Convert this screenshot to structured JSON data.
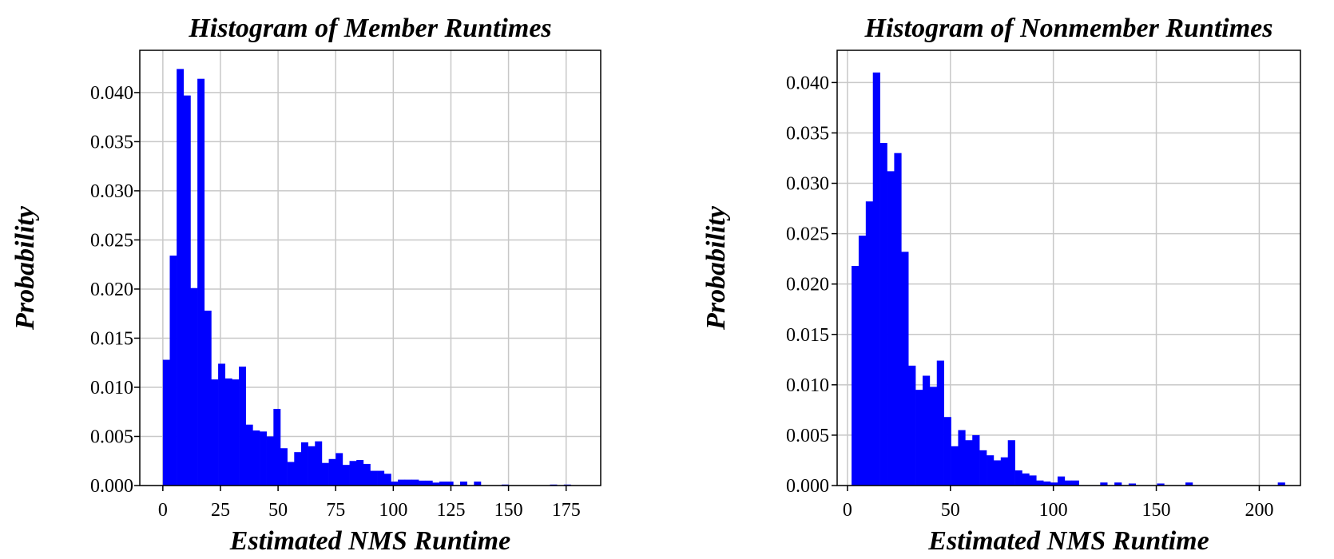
{
  "chart_data": [
    {
      "type": "bar",
      "title": "Histogram of Member Runtimes",
      "xlabel": "Estimated NMS Runtime",
      "ylabel": "Probability",
      "xlim": [
        -10,
        190
      ],
      "ylim": [
        0,
        0.0443
      ],
      "xticks": [
        0,
        25,
        50,
        75,
        100,
        125,
        150,
        175
      ],
      "xtick_labels": [
        "0",
        "25",
        "50",
        "75",
        "100",
        "125",
        "150",
        "175"
      ],
      "yticks": [
        0.0,
        0.005,
        0.01,
        0.015,
        0.02,
        0.025,
        0.03,
        0.035,
        0.04
      ],
      "ytick_labels": [
        "0.000",
        "0.005",
        "0.010",
        "0.015",
        "0.020",
        "0.025",
        "0.030",
        "0.035",
        "0.040"
      ],
      "grid": true,
      "color": "#0000ff",
      "bin_start": 0,
      "bin_width": 3.0,
      "values": [
        0.0128,
        0.0234,
        0.0424,
        0.0397,
        0.0201,
        0.0414,
        0.0178,
        0.0108,
        0.0124,
        0.0109,
        0.0108,
        0.0121,
        0.0062,
        0.0056,
        0.0055,
        0.005,
        0.0078,
        0.0038,
        0.0024,
        0.0034,
        0.0044,
        0.004,
        0.0045,
        0.0023,
        0.0027,
        0.0033,
        0.0021,
        0.0025,
        0.0026,
        0.0022,
        0.0015,
        0.0015,
        0.0012,
        0.0004,
        0.0006,
        0.0006,
        0.0006,
        0.0005,
        0.0005,
        0.0003,
        0.0004,
        0.0004,
        0.0,
        0.0004,
        0.0,
        0.0004,
        0.0,
        0.0,
        0.0,
        0.0001,
        0.0,
        0.0,
        0.0,
        0.0,
        0.0,
        0.0,
        0.0001,
        0.0,
        0.0001,
        0.0
      ]
    },
    {
      "type": "bar",
      "title": "Histogram of Nonmember Runtimes",
      "xlabel": "Estimated NMS Runtime",
      "ylabel": "Probability",
      "xlim": [
        -5,
        220
      ],
      "ylim": [
        0,
        0.0432
      ],
      "xticks": [
        0,
        50,
        100,
        150,
        200
      ],
      "xtick_labels": [
        "0",
        "50",
        "100",
        "150",
        "200"
      ],
      "yticks": [
        0.0,
        0.005,
        0.01,
        0.015,
        0.02,
        0.025,
        0.03,
        0.035,
        0.04
      ],
      "ytick_labels": [
        "0.000",
        "0.005",
        "0.010",
        "0.015",
        "0.020",
        "0.025",
        "0.030",
        "0.035",
        "0.040"
      ],
      "grid": true,
      "color": "#0000ff",
      "bin_start": 2,
      "bin_width": 3.45,
      "values": [
        0.0218,
        0.0248,
        0.0282,
        0.041,
        0.034,
        0.0312,
        0.033,
        0.0232,
        0.0119,
        0.0095,
        0.0109,
        0.0098,
        0.0124,
        0.0068,
        0.0039,
        0.0055,
        0.0045,
        0.005,
        0.0035,
        0.003,
        0.0025,
        0.0028,
        0.0045,
        0.0015,
        0.0012,
        0.001,
        0.0005,
        0.0004,
        0.0003,
        0.0009,
        0.0005,
        0.0005,
        0.0,
        0.0,
        0.0,
        0.0003,
        0.0,
        0.0003,
        0.0,
        0.0002,
        0.0,
        0.0,
        0.0,
        0.0002,
        0.0,
        0.0,
        0.0,
        0.0003,
        0.0,
        0.0,
        0.0,
        0.0,
        0.0,
        0.0,
        0.0,
        0.0,
        0.0,
        0.0,
        0.0,
        0.0,
        0.0003
      ]
    }
  ]
}
